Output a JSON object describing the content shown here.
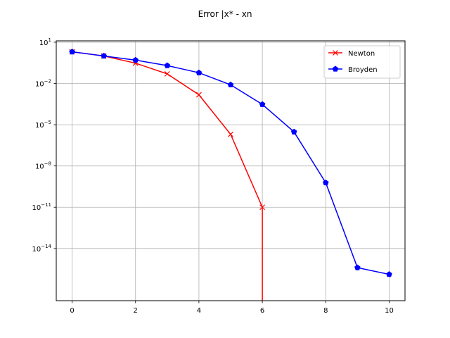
{
  "chart_data": {
    "type": "line",
    "title": "Error |x* - xn",
    "xlabel": "",
    "ylabel": "",
    "xlim": [
      -0.5,
      10.5
    ],
    "ylim_log10": [
      -17.8,
      1.1
    ],
    "yscale": "log",
    "grid": true,
    "legend_position": "top-right",
    "x_ticks": [
      0,
      2,
      4,
      6,
      8,
      10
    ],
    "y_ticks": [
      {
        "exp": 1,
        "base": "10",
        "sup": "1"
      },
      {
        "exp": -2,
        "base": "10",
        "sup": "−2"
      },
      {
        "exp": -5,
        "base": "10",
        "sup": "−5"
      },
      {
        "exp": -8,
        "base": "10",
        "sup": "−8"
      },
      {
        "exp": -11,
        "base": "10",
        "sup": "−11"
      },
      {
        "exp": -14,
        "base": "10",
        "sup": "−14"
      }
    ],
    "series": [
      {
        "name": "Newton",
        "color": "#ff0000",
        "marker": "x",
        "x": [
          0,
          1,
          2,
          3,
          4,
          5,
          6,
          6
        ],
        "y": [
          2.0,
          1.0,
          0.3,
          0.05,
          0.0015,
          2e-06,
          1e-11,
          1e-30
        ]
      },
      {
        "name": "Broyden",
        "color": "#0000ff",
        "marker": "pentagon",
        "x": [
          0,
          1,
          2,
          3,
          4,
          5,
          6,
          7,
          8,
          9,
          10
        ],
        "y": [
          2.0,
          1.0,
          0.5,
          0.2,
          0.06,
          0.008,
          0.0003,
          3e-06,
          6e-10,
          4e-16,
          1.3e-16
        ]
      }
    ]
  }
}
